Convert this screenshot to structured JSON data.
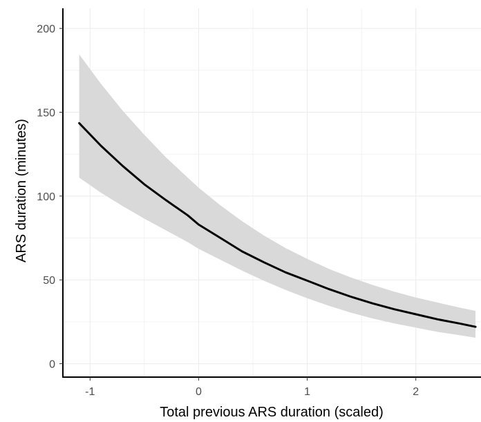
{
  "chart_data": {
    "type": "line",
    "title": "",
    "xlabel": "Total previous ARS duration (scaled)",
    "ylabel": "ARS duration (minutes)",
    "xlim": [
      -1.25,
      2.6
    ],
    "ylim": [
      -8,
      212
    ],
    "x_ticks": [
      -1,
      0,
      1,
      2
    ],
    "x_tick_labels": [
      "-1",
      "0",
      "1",
      "2"
    ],
    "y_ticks": [
      0,
      50,
      100,
      150,
      200
    ],
    "y_tick_labels": [
      "0",
      "50",
      "100",
      "150",
      "200"
    ],
    "grid": true,
    "legend": "none",
    "series": [
      {
        "x": [
          -1.1,
          -0.9,
          -0.7,
          -0.5,
          -0.3,
          -0.1,
          0.0,
          0.2,
          0.4,
          0.6,
          0.8,
          1.0,
          1.2,
          1.4,
          1.6,
          1.8,
          2.0,
          2.2,
          2.4,
          2.55
        ],
        "y": [
          143.5,
          130,
          118,
          107,
          97.5,
          88.5,
          83,
          75,
          67,
          60.5,
          54.5,
          49.5,
          44.5,
          40,
          36,
          32.5,
          29.5,
          26.5,
          24,
          22
        ],
        "lower": [
          111,
          102,
          94,
          86.5,
          79.5,
          72.5,
          68.5,
          62,
          55.5,
          49.5,
          44,
          39,
          34.5,
          30.5,
          27,
          24,
          21.5,
          19,
          17,
          15.5
        ],
        "upper": [
          184.5,
          167,
          151,
          136.5,
          123,
          111,
          105,
          94.5,
          85,
          76.5,
          69,
          62.5,
          56.5,
          51.5,
          47,
          43,
          39.5,
          36.5,
          33.5,
          31.5
        ]
      }
    ],
    "colors": {
      "line": "#000000",
      "ribbon": "#d9d9d9",
      "grid": "#ebebeb",
      "axis": "#000000"
    }
  }
}
